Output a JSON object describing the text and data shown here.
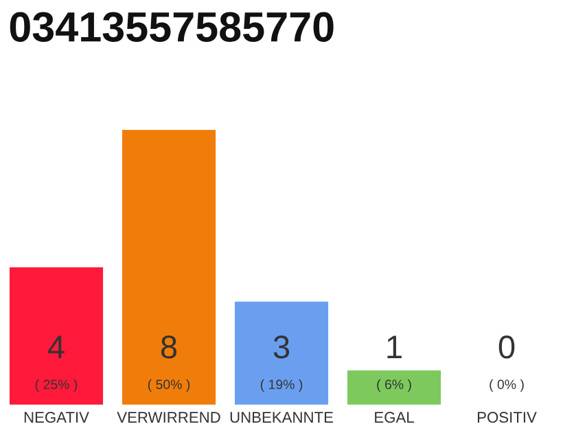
{
  "chart_data": {
    "type": "bar",
    "title": "03413557585770",
    "categories": [
      "NEGATIV",
      "VERWIRREND",
      "UNBEKANNTE",
      "EGAL",
      "POSITIV"
    ],
    "values": [
      4,
      8,
      3,
      1,
      0
    ],
    "colors": [
      "#ff1a3c",
      "#f07d0a",
      "#6a9ff0",
      "#7dc95e",
      "#cccccc"
    ],
    "value_labels": [
      "4",
      "8",
      "3",
      "1",
      "0"
    ],
    "annotations": [
      "( 25% )",
      "( 50% )",
      "( 19% )",
      "( 6% )",
      "( 0% )"
    ],
    "tick_labels": "x"
  }
}
